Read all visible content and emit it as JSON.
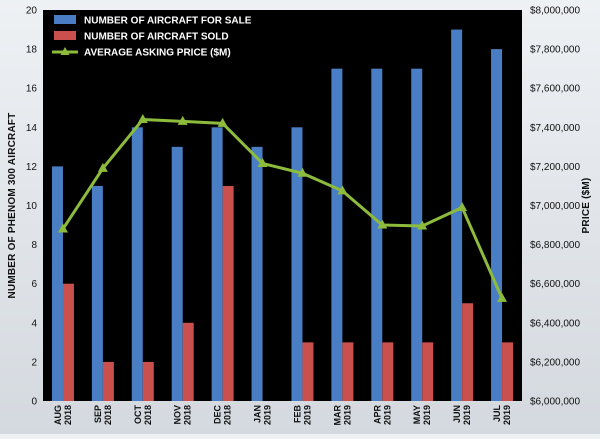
{
  "chart_data": {
    "type": "bar",
    "categories": [
      [
        "AUG",
        "2018"
      ],
      [
        "SEP",
        "2018"
      ],
      [
        "OCT",
        "2018"
      ],
      [
        "NOV",
        "2018"
      ],
      [
        "DEC",
        "2018"
      ],
      [
        "JAN",
        "2019"
      ],
      [
        "FEB",
        "2019"
      ],
      [
        "MAR",
        "2019"
      ],
      [
        "APR",
        "2019"
      ],
      [
        "MAY",
        "2019"
      ],
      [
        "JUN",
        "2019"
      ],
      [
        "JUL",
        "2019"
      ]
    ],
    "series": [
      {
        "name": "NUMBER OF AIRCRAFT FOR SALE",
        "type": "bar",
        "axis": "left",
        "color": "#4a7ec4",
        "values": [
          12,
          11,
          14,
          13,
          14,
          13,
          14,
          17,
          17,
          17,
          19,
          18
        ]
      },
      {
        "name": "NUMBER OF AIRCRAFT SOLD",
        "type": "bar",
        "axis": "left",
        "color": "#c9504c",
        "values": [
          6,
          2,
          2,
          4,
          11,
          0,
          3,
          3,
          3,
          3,
          5,
          3
        ]
      },
      {
        "name": "AVERAGE ASKING PRICE ($M)",
        "type": "line",
        "axis": "right",
        "color": "#8dbb3c",
        "values": [
          6880000,
          7190000,
          7440000,
          7430000,
          7420000,
          7215000,
          7165000,
          7075000,
          6900000,
          6895000,
          6990000,
          6525000
        ]
      }
    ],
    "ylabel": "NUMBER OF PHENOM 300 AIRCRAFT",
    "y2label": "PRICE ($M)",
    "ylim": [
      0,
      20
    ],
    "y2lim": [
      6000000,
      8000000
    ],
    "yticks": [
      "0",
      "2",
      "4",
      "6",
      "8",
      "10",
      "12",
      "14",
      "16",
      "18",
      "20"
    ],
    "y2ticks": [
      "$6,000,000",
      "$6,200,000",
      "$6,400,000",
      "$6,600,000",
      "$6,800,000",
      "$7,000,000",
      "$7,200,000",
      "$7,400,000",
      "$7,600,000",
      "$7,800,000",
      "$8,000,000"
    ],
    "legend_position": "top-left",
    "grid": false,
    "plot_background": "#000000"
  }
}
